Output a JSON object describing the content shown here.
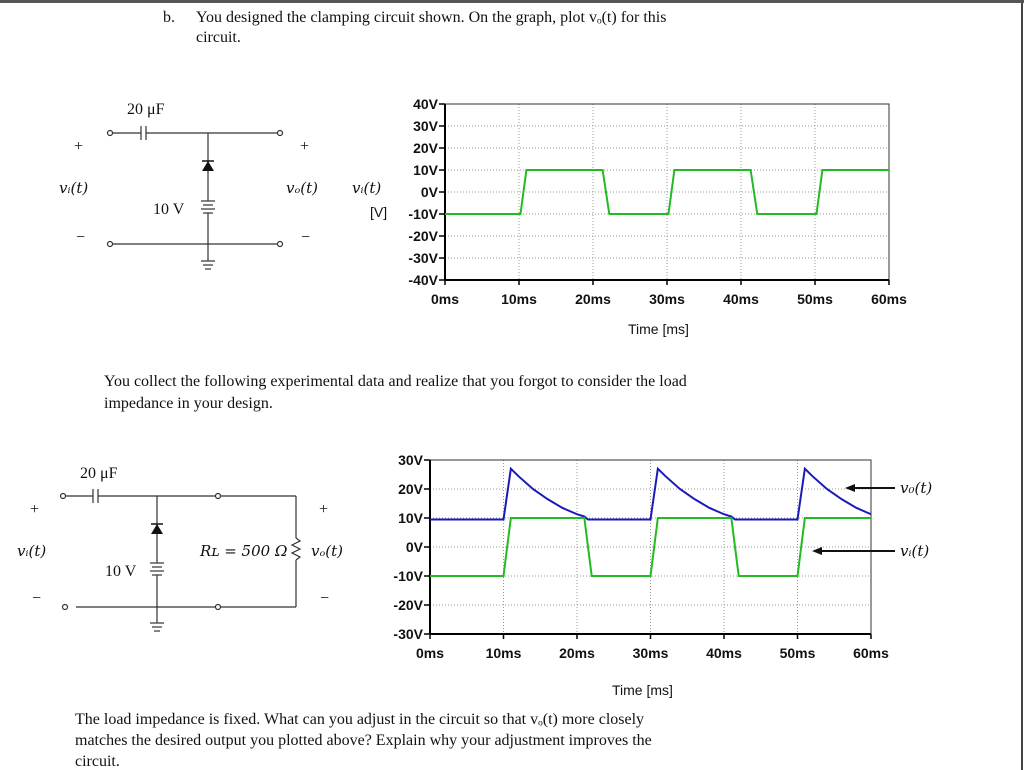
{
  "question": {
    "label": "b.",
    "line1": "You designed the clamping circuit shown.  On the graph, plot vₒ(t) for this",
    "line2": "circuit.",
    "middle_line1": "You collect the following experimental data and realize that you forgot to consider the load",
    "middle_line2": "impedance in your design.",
    "bottom_line1": "The load impedance is fixed.  What can you adjust in the circuit so that vₒ(t) more closely",
    "bottom_line2": "matches the desired output you plotted above? Explain why your adjustment improves the",
    "bottom_line3": "circuit."
  },
  "circuit1": {
    "capacitor": "20 μF",
    "battery": "10 V",
    "plus": "+",
    "minus": "−",
    "input": "vᵢ(t)",
    "output": "vₒ(t)"
  },
  "circuit2": {
    "capacitor": "20 μF",
    "battery": "10 V",
    "plus": "+",
    "minus": "−",
    "input": "vᵢ(t)",
    "output": "vₒ(t)",
    "resistor": "Rʟ = 500 Ω"
  },
  "colors": {
    "vi": "#22bb22",
    "vo": "#1a1ab8",
    "grid": "#999999"
  },
  "chart_data": [
    {
      "type": "line",
      "ylabel": "vᵢ(t)",
      "yunit": "[V]",
      "xlabel": "Time [ms]",
      "xlim": [
        0,
        60
      ],
      "ylim": [
        -40,
        40
      ],
      "grid": true,
      "xticks": [
        "0ms",
        "10ms",
        "20ms",
        "30ms",
        "40ms",
        "50ms",
        "60ms"
      ],
      "yticks": [
        "40V",
        "30V",
        "20V",
        "10V",
        "0V",
        "-10V",
        "-20V",
        "-30V",
        "-40V"
      ],
      "series": [
        {
          "key": "vi",
          "points": [
            [
              0,
              -10
            ],
            [
              10.2,
              -10
            ],
            [
              11,
              10
            ],
            [
              21.3,
              10
            ],
            [
              22.2,
              -10
            ],
            [
              30.2,
              -10
            ],
            [
              31,
              10
            ],
            [
              41.3,
              10
            ],
            [
              42.2,
              -10
            ],
            [
              50.2,
              -10
            ],
            [
              51,
              10
            ],
            [
              60,
              10
            ]
          ]
        }
      ]
    },
    {
      "type": "line",
      "xlabel": "Time [ms]",
      "xlim": [
        0,
        60
      ],
      "ylim": [
        -30,
        30
      ],
      "grid": true,
      "xticks": [
        "0ms",
        "10ms",
        "20ms",
        "30ms",
        "40ms",
        "50ms",
        "60ms"
      ],
      "yticks": [
        "30V",
        "20V",
        "10V",
        "0V",
        "-10V",
        "-20V",
        "-30V"
      ],
      "annotations": {
        "vo": "v₀(t)",
        "vi": "vᵢ(t)"
      },
      "series": [
        {
          "key": "vo",
          "name": "v₀(t)",
          "points": [
            [
              0,
              9.5
            ],
            [
              10,
              9.5
            ],
            [
              11,
              27
            ],
            [
              12,
              24.5
            ],
            [
              14,
              20
            ],
            [
              16,
              16.5
            ],
            [
              18,
              13.5
            ],
            [
              20,
              11.3
            ],
            [
              21,
              10.5
            ],
            [
              21.5,
              9.5
            ],
            [
              30,
              9.5
            ],
            [
              31,
              27
            ],
            [
              32,
              24.5
            ],
            [
              34,
              20
            ],
            [
              36,
              16.5
            ],
            [
              38,
              13.5
            ],
            [
              40,
              11.3
            ],
            [
              41,
              10.5
            ],
            [
              41.5,
              9.5
            ],
            [
              50,
              9.5
            ],
            [
              51,
              27
            ],
            [
              52,
              24.5
            ],
            [
              54,
              20
            ],
            [
              56,
              16.5
            ],
            [
              58,
              13.5
            ],
            [
              60,
              11.3
            ]
          ]
        },
        {
          "key": "vi",
          "name": "vᵢ(t)",
          "points": [
            [
              0,
              -10
            ],
            [
              10,
              -10
            ],
            [
              11,
              10
            ],
            [
              21,
              10
            ],
            [
              22,
              -10
            ],
            [
              30,
              -10
            ],
            [
              31,
              10
            ],
            [
              41,
              10
            ],
            [
              42,
              -10
            ],
            [
              50,
              -10
            ],
            [
              51,
              10
            ],
            [
              60,
              10
            ]
          ]
        }
      ]
    }
  ]
}
